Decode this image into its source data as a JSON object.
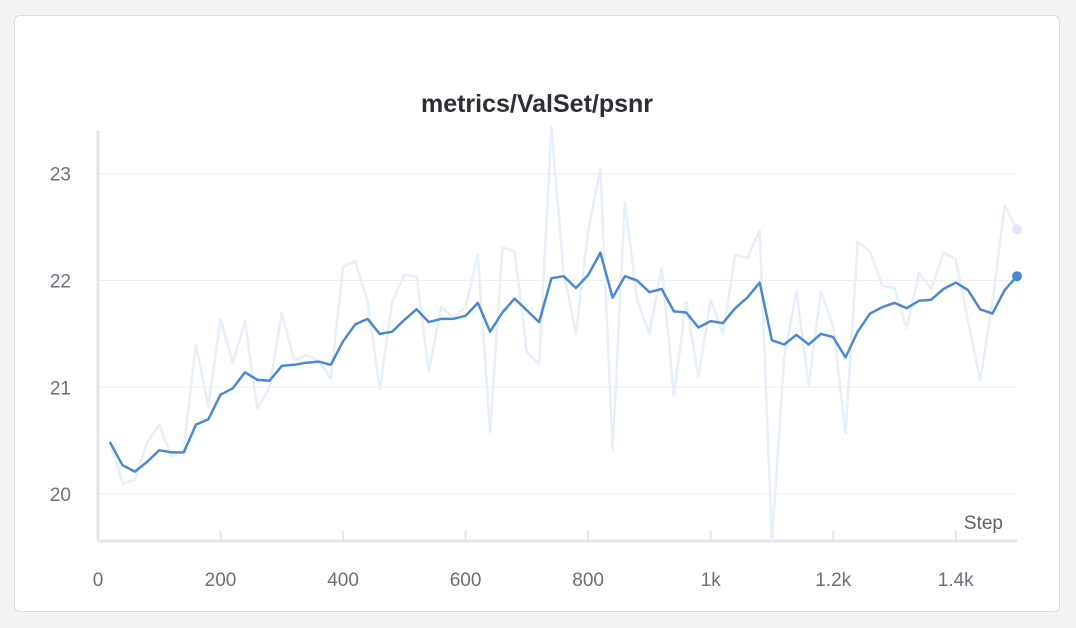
{
  "panel": {
    "title": "metrics/ValSet/psnr",
    "xlabel": "Step"
  },
  "colors": {
    "smoothed": "#4a89d1",
    "raw": "#e7eff8",
    "grid": "#eceef1",
    "axis": "#e2e4e8"
  },
  "chart_data": {
    "type": "line",
    "title": "metrics/ValSet/psnr",
    "xlabel": "Step",
    "ylabel": "",
    "xlim": [
      0,
      1500
    ],
    "ylim": [
      19.56,
      23.4
    ],
    "grid": true,
    "x_ticks": [
      {
        "value": 0,
        "label": "0"
      },
      {
        "value": 200,
        "label": "200"
      },
      {
        "value": 400,
        "label": "400"
      },
      {
        "value": 600,
        "label": "600"
      },
      {
        "value": 800,
        "label": "800"
      },
      {
        "value": 1000,
        "label": "1k"
      },
      {
        "value": 1200,
        "label": "1.2k"
      },
      {
        "value": 1400,
        "label": "1.4k"
      }
    ],
    "y_ticks": [
      {
        "value": 20,
        "label": "20"
      },
      {
        "value": 21,
        "label": "21"
      },
      {
        "value": 22,
        "label": "22"
      },
      {
        "value": 23,
        "label": "23"
      }
    ],
    "series": [
      {
        "role": "raw",
        "x": [
          20,
          40,
          60,
          80,
          100,
          120,
          140,
          160,
          180,
          200,
          220,
          240,
          260,
          280,
          300,
          320,
          340,
          360,
          380,
          400,
          420,
          440,
          460,
          480,
          500,
          520,
          540,
          560,
          580,
          600,
          620,
          640,
          660,
          680,
          700,
          720,
          740,
          760,
          780,
          800,
          820,
          840,
          860,
          880,
          900,
          920,
          940,
          960,
          980,
          1000,
          1020,
          1040,
          1060,
          1080,
          1100,
          1120,
          1140,
          1160,
          1180,
          1200,
          1220,
          1240,
          1260,
          1280,
          1300,
          1320,
          1340,
          1360,
          1380,
          1400,
          1420,
          1440,
          1460,
          1480,
          1500
        ],
        "values": [
          20.48,
          20.1,
          20.13,
          20.48,
          20.65,
          20.35,
          20.42,
          21.4,
          20.82,
          21.64,
          21.23,
          21.62,
          20.8,
          21.0,
          21.7,
          21.25,
          21.3,
          21.25,
          21.08,
          22.13,
          22.18,
          21.8,
          20.98,
          21.8,
          22.05,
          22.04,
          21.15,
          21.75,
          21.65,
          21.75,
          22.24,
          20.58,
          22.31,
          22.27,
          21.33,
          21.22,
          23.44,
          22.08,
          21.5,
          22.46,
          23.05,
          20.41,
          22.73,
          21.82,
          21.5,
          22.12,
          20.93,
          21.8,
          21.1,
          21.82,
          21.5,
          22.24,
          22.21,
          22.47,
          19.56,
          21.27,
          21.9,
          21.02,
          21.9,
          21.57,
          20.57,
          22.36,
          22.27,
          21.95,
          21.93,
          21.55,
          22.07,
          21.92,
          22.26,
          22.2,
          21.62,
          21.06,
          21.8,
          22.7,
          22.48
        ]
      },
      {
        "role": "smoothed",
        "x": [
          20,
          40,
          60,
          80,
          100,
          120,
          140,
          160,
          180,
          200,
          220,
          240,
          260,
          280,
          300,
          320,
          340,
          360,
          380,
          400,
          420,
          440,
          460,
          480,
          500,
          520,
          540,
          560,
          580,
          600,
          620,
          640,
          660,
          680,
          700,
          720,
          740,
          760,
          780,
          800,
          820,
          840,
          860,
          880,
          900,
          920,
          940,
          960,
          980,
          1000,
          1020,
          1040,
          1060,
          1080,
          1100,
          1120,
          1140,
          1160,
          1180,
          1200,
          1220,
          1240,
          1260,
          1280,
          1300,
          1320,
          1340,
          1360,
          1380,
          1400,
          1420,
          1440,
          1460,
          1480,
          1500
        ],
        "values": [
          20.48,
          20.27,
          20.21,
          20.3,
          20.41,
          20.39,
          20.39,
          20.65,
          20.7,
          20.93,
          20.99,
          21.14,
          21.07,
          21.06,
          21.2,
          21.21,
          21.23,
          21.24,
          21.21,
          21.43,
          21.59,
          21.64,
          21.5,
          21.52,
          21.63,
          21.73,
          21.61,
          21.64,
          21.64,
          21.67,
          21.79,
          21.52,
          21.7,
          21.83,
          21.72,
          21.61,
          22.02,
          22.04,
          21.93,
          22.05,
          22.26,
          21.84,
          22.04,
          22.0,
          21.89,
          21.92,
          21.71,
          21.7,
          21.56,
          21.62,
          21.6,
          21.74,
          21.84,
          21.98,
          21.44,
          21.4,
          21.49,
          21.4,
          21.5,
          21.47,
          21.28,
          21.52,
          21.69,
          21.75,
          21.79,
          21.74,
          21.81,
          21.82,
          21.92,
          21.98,
          21.91,
          21.73,
          21.69,
          21.91,
          22.04
        ]
      }
    ]
  }
}
